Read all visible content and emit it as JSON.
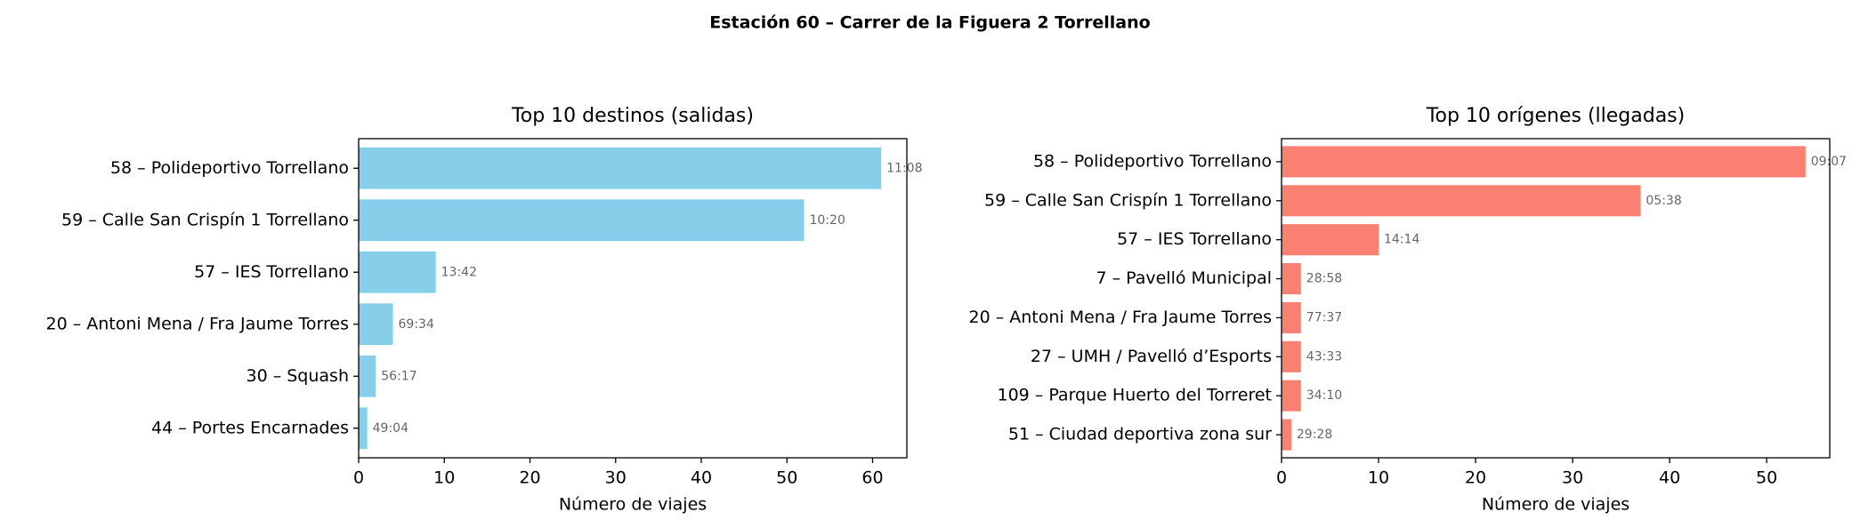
{
  "title": "Estación 60 – Carrer de la Figuera 2 Torrellano",
  "chart_data": [
    {
      "type": "barh",
      "title": "Top 10 destinos (salidas)",
      "xlabel": "Número de viajes",
      "categories": [
        "58 – Polideportivo Torrellano",
        "59 – Calle San Crispín 1 Torrellano",
        "57 – IES Torrellano",
        "20 – Antoni Mena / Fra Jaume Torres",
        "30 – Squash",
        "44 – Portes Encarnades"
      ],
      "values": [
        61,
        52,
        9,
        4,
        2,
        1
      ],
      "bar_labels": [
        "11:08",
        "10:20",
        "13:42",
        "69:34",
        "56:17",
        "49:04"
      ],
      "color": "#87ceeb",
      "xlim": [
        0,
        64
      ],
      "xticks": [
        0,
        10,
        20,
        30,
        40,
        50,
        60
      ]
    },
    {
      "type": "barh",
      "title": "Top 10 orígenes (llegadas)",
      "xlabel": "Número de viajes",
      "categories": [
        "58 – Polideportivo Torrellano",
        "59 – Calle San Crispín 1 Torrellano",
        "57 – IES Torrellano",
        "7 – Pavelló Municipal",
        "20 – Antoni Mena / Fra Jaume Torres",
        "27 – UMH / Pavelló d’Esports",
        "109 – Parque Huerto del Torreret",
        "51 – Ciudad deportiva zona sur"
      ],
      "values": [
        54,
        37,
        10,
        2,
        2,
        2,
        2,
        1
      ],
      "bar_labels": [
        "09:07",
        "05:38",
        "14:14",
        "28:58",
        "77:37",
        "43:33",
        "34:10",
        "29:28"
      ],
      "color": "#fa8072",
      "xlim": [
        0,
        56.5
      ],
      "xticks": [
        0,
        10,
        20,
        30,
        40,
        50
      ]
    }
  ]
}
